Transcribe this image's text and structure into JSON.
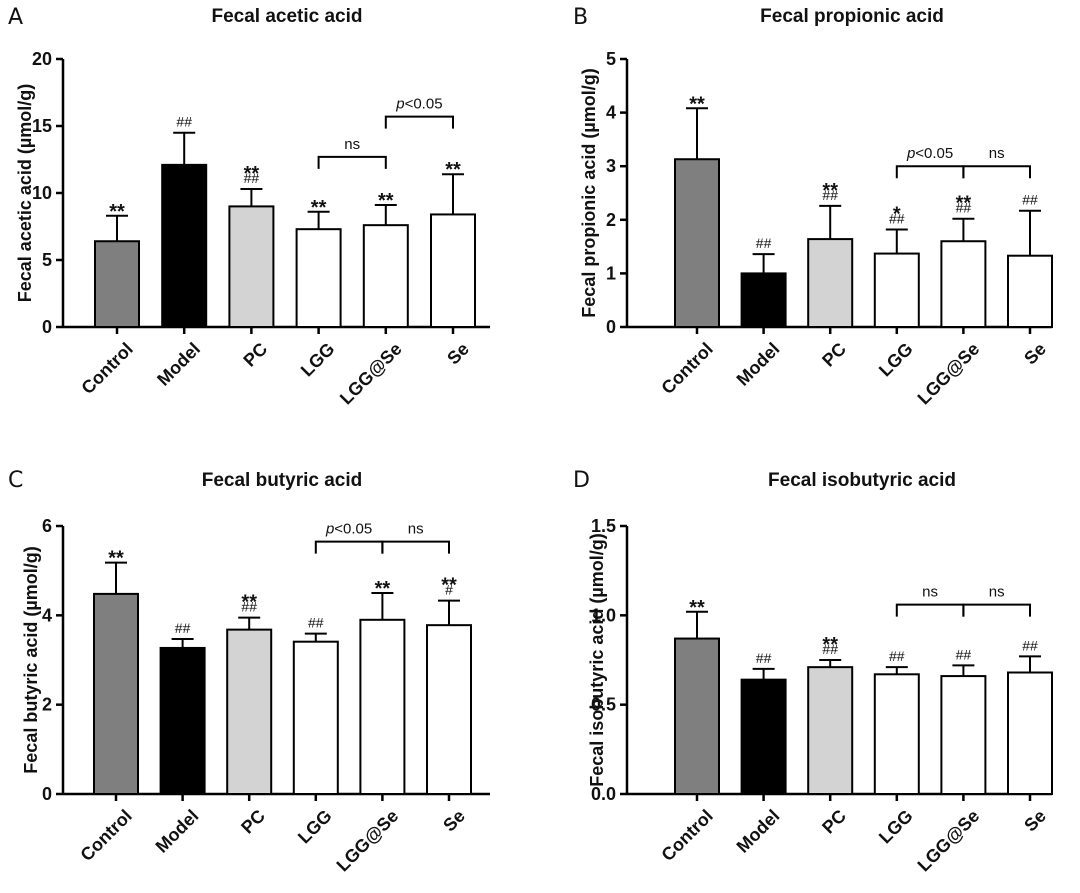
{
  "chart_data": [
    {
      "type": "bar",
      "panel": "A",
      "title": "Fecal acetic acid",
      "ylabel": "Fecal acetic acid (µmol/g)",
      "ylim": [
        0,
        20
      ],
      "yticks": [
        0,
        5,
        10,
        15,
        20
      ],
      "ytick_labels": [
        "0",
        "5",
        "10",
        "15",
        "20"
      ],
      "categories": [
        "Control",
        "Model",
        "PC",
        "LGG",
        "LGG@Se",
        "Se"
      ],
      "values": [
        6.4,
        12.1,
        9.0,
        7.3,
        7.6,
        8.4
      ],
      "errors": [
        1.9,
        2.4,
        1.3,
        1.3,
        1.5,
        3.0
      ],
      "colors": [
        "#7f7f7f",
        "#000000",
        "#d3d3d3",
        "#ffffff",
        "#ffffff",
        "#ffffff"
      ],
      "sig_stars": [
        "**",
        "",
        "**",
        "**",
        "**",
        "**"
      ],
      "sig_hash": [
        "",
        "##",
        "##",
        "",
        "",
        ""
      ],
      "brackets": [
        {
          "from": 3,
          "to": 4,
          "y": 12.7,
          "label": "ns"
        },
        {
          "from": 4,
          "to": 5,
          "y": 15.7,
          "label_italic": "p",
          "label": "<0.05"
        }
      ]
    },
    {
      "type": "bar",
      "panel": "B",
      "title": "Fecal propionic acid",
      "ylabel": "Fecal propionic acid (µmol/g)",
      "ylim": [
        0,
        5
      ],
      "yticks": [
        0,
        1,
        2,
        3,
        4,
        5
      ],
      "ytick_labels": [
        "0",
        "1",
        "2",
        "3",
        "4",
        "5"
      ],
      "categories": [
        "Control",
        "Model",
        "PC",
        "LGG",
        "LGG@Se",
        "Se"
      ],
      "values": [
        3.13,
        1.0,
        1.64,
        1.37,
        1.6,
        1.33
      ],
      "errors": [
        0.95,
        0.36,
        0.62,
        0.45,
        0.42,
        0.84
      ],
      "colors": [
        "#7f7f7f",
        "#000000",
        "#d3d3d3",
        "#ffffff",
        "#ffffff",
        "#ffffff"
      ],
      "sig_stars": [
        "**",
        "",
        "**",
        "*",
        "**",
        ""
      ],
      "sig_hash": [
        "",
        "##",
        "##",
        "##",
        "##",
        "##"
      ],
      "brackets": [
        {
          "from": 3,
          "to": 4,
          "y": 3.0,
          "label_italic": "p",
          "label": "<0.05"
        },
        {
          "from": 4,
          "to": 5,
          "y": 3.0,
          "label": "ns"
        }
      ]
    },
    {
      "type": "bar",
      "panel": "C",
      "title": "Fecal butyric acid",
      "ylabel": "Fecal butyric acid (µmol/g)",
      "ylim": [
        0,
        6
      ],
      "yticks": [
        0,
        2,
        4,
        6
      ],
      "ytick_labels": [
        "0",
        "2",
        "4",
        "6"
      ],
      "categories": [
        "Control",
        "Model",
        "PC",
        "LGG",
        "LGG@Se",
        "Se"
      ],
      "values": [
        4.48,
        3.27,
        3.68,
        3.41,
        3.9,
        3.78
      ],
      "errors": [
        0.7,
        0.2,
        0.27,
        0.18,
        0.6,
        0.55
      ],
      "colors": [
        "#7f7f7f",
        "#000000",
        "#d3d3d3",
        "#ffffff",
        "#ffffff",
        "#ffffff"
      ],
      "sig_stars": [
        "**",
        "",
        "**",
        "",
        "**",
        "**"
      ],
      "sig_hash": [
        "",
        "##",
        "##",
        "##",
        "",
        "#"
      ],
      "brackets": [
        {
          "from": 3,
          "to": 4,
          "y": 5.65,
          "label_italic": "p",
          "label": "<0.05"
        },
        {
          "from": 4,
          "to": 5,
          "y": 5.65,
          "label": "ns"
        }
      ]
    },
    {
      "type": "bar",
      "panel": "D",
      "title": "Fecal isobutyric acid",
      "ylabel": "Fecal isobutyric acid (µmol/g)",
      "ylim": [
        0,
        1.5
      ],
      "yticks": [
        0,
        0.5,
        1.0,
        1.5
      ],
      "ytick_labels": [
        "0.0",
        "0.5",
        "1.0",
        "1.5"
      ],
      "categories": [
        "Control",
        "Model",
        "PC",
        "LGG",
        "LGG@Se",
        "Se"
      ],
      "values": [
        0.87,
        0.64,
        0.71,
        0.67,
        0.66,
        0.68
      ],
      "errors": [
        0.15,
        0.06,
        0.04,
        0.04,
        0.06,
        0.09
      ],
      "colors": [
        "#7f7f7f",
        "#000000",
        "#d3d3d3",
        "#ffffff",
        "#ffffff",
        "#ffffff"
      ],
      "sig_stars": [
        "**",
        "",
        "**",
        "",
        "",
        ""
      ],
      "sig_hash": [
        "",
        "##",
        "##",
        "##",
        "##",
        "##"
      ],
      "brackets": [
        {
          "from": 3,
          "to": 4,
          "y": 1.06,
          "label": "ns"
        },
        {
          "from": 4,
          "to": 5,
          "y": 1.06,
          "label": "ns"
        }
      ]
    }
  ]
}
